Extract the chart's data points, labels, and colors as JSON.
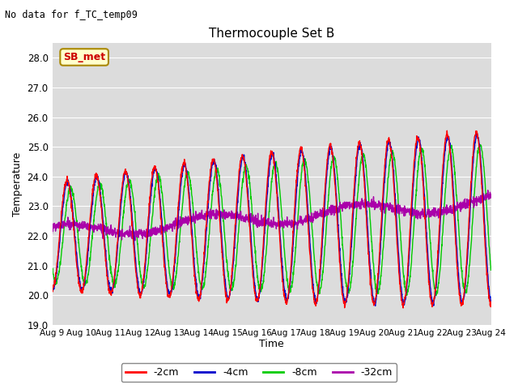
{
  "title": "Thermocouple Set B",
  "no_data_text": "No data for f_TC_temp09",
  "ylabel": "Temperature",
  "xlabel": "Time",
  "legend_label": "SB_met",
  "ylim": [
    19.0,
    28.5
  ],
  "yticks": [
    19.0,
    20.0,
    21.0,
    22.0,
    23.0,
    24.0,
    25.0,
    26.0,
    27.0,
    28.0
  ],
  "xtick_labels": [
    "Aug 9",
    "Aug 10",
    "Aug 11",
    "Aug 12",
    "Aug 13",
    "Aug 14",
    "Aug 15",
    "Aug 16",
    "Aug 17",
    "Aug 18",
    "Aug 19",
    "Aug 20",
    "Aug 21",
    "Aug 22",
    "Aug 23",
    "Aug 24"
  ],
  "colors": {
    "2cm": "#ff0000",
    "4cm": "#0000cc",
    "8cm": "#00cc00",
    "32cm": "#aa00aa"
  },
  "figsize": [
    6.4,
    4.8
  ],
  "dpi": 100
}
